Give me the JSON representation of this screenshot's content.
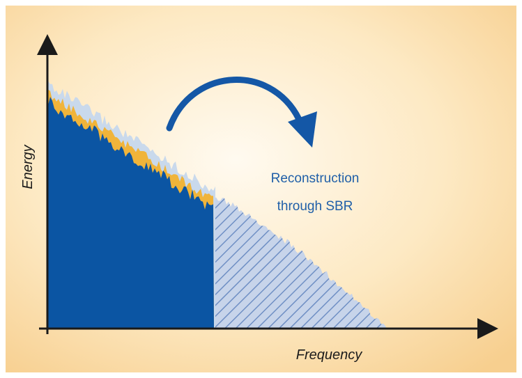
{
  "diagram": {
    "x_axis_label": "Frequency",
    "y_axis_label": "Energy",
    "annotation": {
      "line1": "Reconstruction",
      "line2": "through SBR"
    },
    "colors": {
      "background_center": "#fffaf0",
      "background_edge": "#f7cf8f",
      "low_band": "#0b55a3",
      "low_band_envelope": "#f0b43a",
      "upper_envelope": "#c9d9ec",
      "reconstructed_hatch": "#6f8fc4",
      "reconstructed_fill": "#c7d4ea",
      "arrow": "#1457a6",
      "axis": "#1a1a1a"
    }
  }
}
